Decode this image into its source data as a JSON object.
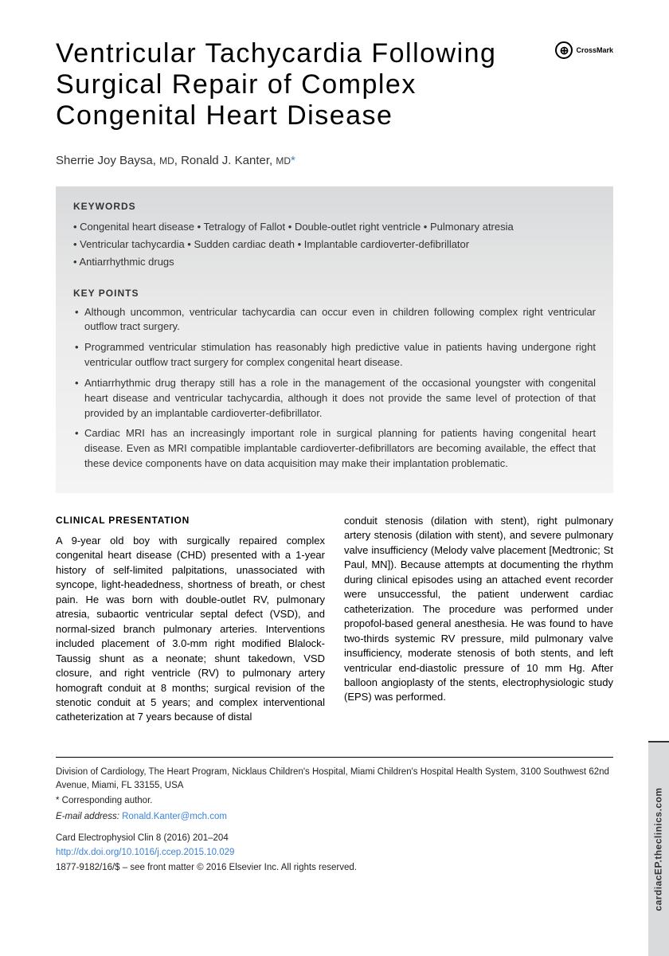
{
  "title": "Ventricular Tachycardia Following Surgical Repair of Complex Congenital Heart Disease",
  "crossmark": {
    "label": "CrossMark"
  },
  "authors": [
    {
      "name": "Sherrie Joy Baysa",
      "degree": "MD"
    },
    {
      "name": "Ronald J. Kanter",
      "degree": "MD",
      "corresponding": true
    }
  ],
  "keywords_label": "KEYWORDS",
  "keywords": [
    "Congenital heart disease",
    "Tetralogy of Fallot",
    "Double-outlet right ventricle",
    "Pulmonary atresia",
    "Ventricular tachycardia",
    "Sudden cardiac death",
    "Implantable cardioverter-defibrillator",
    "Antiarrhythmic drugs"
  ],
  "keypoints_label": "KEY POINTS",
  "keypoints": [
    "Although uncommon, ventricular tachycardia can occur even in children following complex right ventricular outflow tract surgery.",
    "Programmed ventricular stimulation has reasonably high predictive value in patients having undergone right ventricular outflow tract surgery for complex congenital heart disease.",
    "Antiarrhythmic drug therapy still has a role in the management of the occasional youngster with congenital heart disease and ventricular tachycardia, although it does not provide the same level of protection of that provided by an implantable cardioverter-defibrillator.",
    "Cardiac MRI has an increasingly important role in surgical planning for patients having congenital heart disease. Even as MRI compatible implantable cardioverter-defibrillators are becoming available, the effect that these device components have on data acquisition may make their implantation problematic."
  ],
  "clinical_heading": "CLINICAL PRESENTATION",
  "body_col1": "A 9-year old boy with surgically repaired complex congenital heart disease (CHD) presented with a 1-year history of self-limited palpitations, unassociated with syncope, light-headedness, shortness of breath, or chest pain. He was born with double-outlet RV, pulmonary atresia, subaortic ventricular septal defect (VSD), and normal-sized branch pulmonary arteries. Interventions included placement of 3.0-mm right modified Blalock-Taussig shunt as a neonate; shunt takedown, VSD closure, and right ventricle (RV) to pulmonary artery homograft conduit at 8 months; surgical revision of the stenotic conduit at 5 years; and complex interventional catheterization at 7 years because of distal",
  "body_col2": "conduit stenosis (dilation with stent), right pulmonary artery stenosis (dilation with stent), and severe pulmonary valve insufficiency (Melody valve placement [Medtronic; St Paul, MN]). Because attempts at documenting the rhythm during clinical episodes using an attached event recorder were unsuccessful, the patient underwent cardiac catheterization. The procedure was performed under propofol-based general anesthesia. He was found to have two-thirds systemic RV pressure, mild pulmonary valve insufficiency, moderate stenosis of both stents, and left ventricular end-diastolic pressure of 10 mm Hg. After balloon angioplasty of the stents, electrophysiologic study (EPS) was performed.",
  "footer": {
    "affiliation": "Division of Cardiology, The Heart Program, Nicklaus Children's Hospital, Miami Children's Hospital Health System, 3100 Southwest 62nd Avenue, Miami, FL 33155, USA",
    "corresponding": "* Corresponding author.",
    "email_label": "E-mail address:",
    "email": "Ronald.Kanter@mch.com",
    "citation": "Card Electrophysiol Clin 8 (2016) 201–204",
    "doi": "http://dx.doi.org/10.1016/j.ccep.2015.10.029",
    "copyright": "1877-9182/16/$ – see front matter © 2016 Elsevier Inc. All rights reserved."
  },
  "side_tab": "cardiacEP.theclinics.com",
  "colors": {
    "link": "#3b82d6",
    "box_bg_top": "#d9dadb",
    "box_bg_bottom": "#f4f4f4",
    "text": "#000000"
  }
}
